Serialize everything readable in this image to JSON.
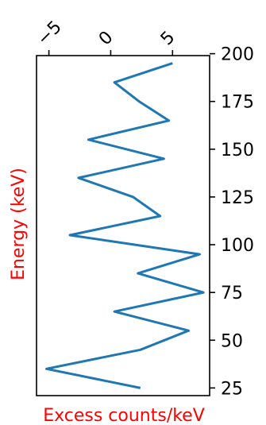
{
  "chart_data": {
    "type": "line",
    "orientation": "vertical-profile",
    "title": "",
    "xlabel": "Excess counts/keV",
    "ylabel": "Energy (keV)",
    "label_color": "#ff0000",
    "line_color": "#1f77b4",
    "xaxis_position": "top",
    "yaxis_position": "right",
    "xticks": [
      -5,
      0,
      5
    ],
    "xtick_labels": [
      "−5",
      "0",
      "5"
    ],
    "yticks": [
      25,
      50,
      75,
      100,
      125,
      150,
      175,
      200
    ],
    "ytick_labels": [
      "25",
      "50",
      "75",
      "100",
      "125",
      "150",
      "175",
      "200"
    ],
    "xlim": [
      -6,
      8
    ],
    "ylim": [
      21,
      199
    ],
    "series": [
      {
        "x": [
          2.4,
          -5.2,
          2.4,
          6.3,
          0.3,
          7.5,
          2.2,
          7.2,
          -3.3,
          4.0,
          1.8,
          -2.6,
          4.3,
          -1.8,
          4.7,
          2.3,
          0.3,
          5.0
        ],
        "y": [
          25,
          35,
          45,
          55,
          65,
          75,
          85,
          95,
          105,
          115,
          125,
          135,
          145,
          155,
          165,
          175,
          185,
          195
        ]
      }
    ]
  }
}
